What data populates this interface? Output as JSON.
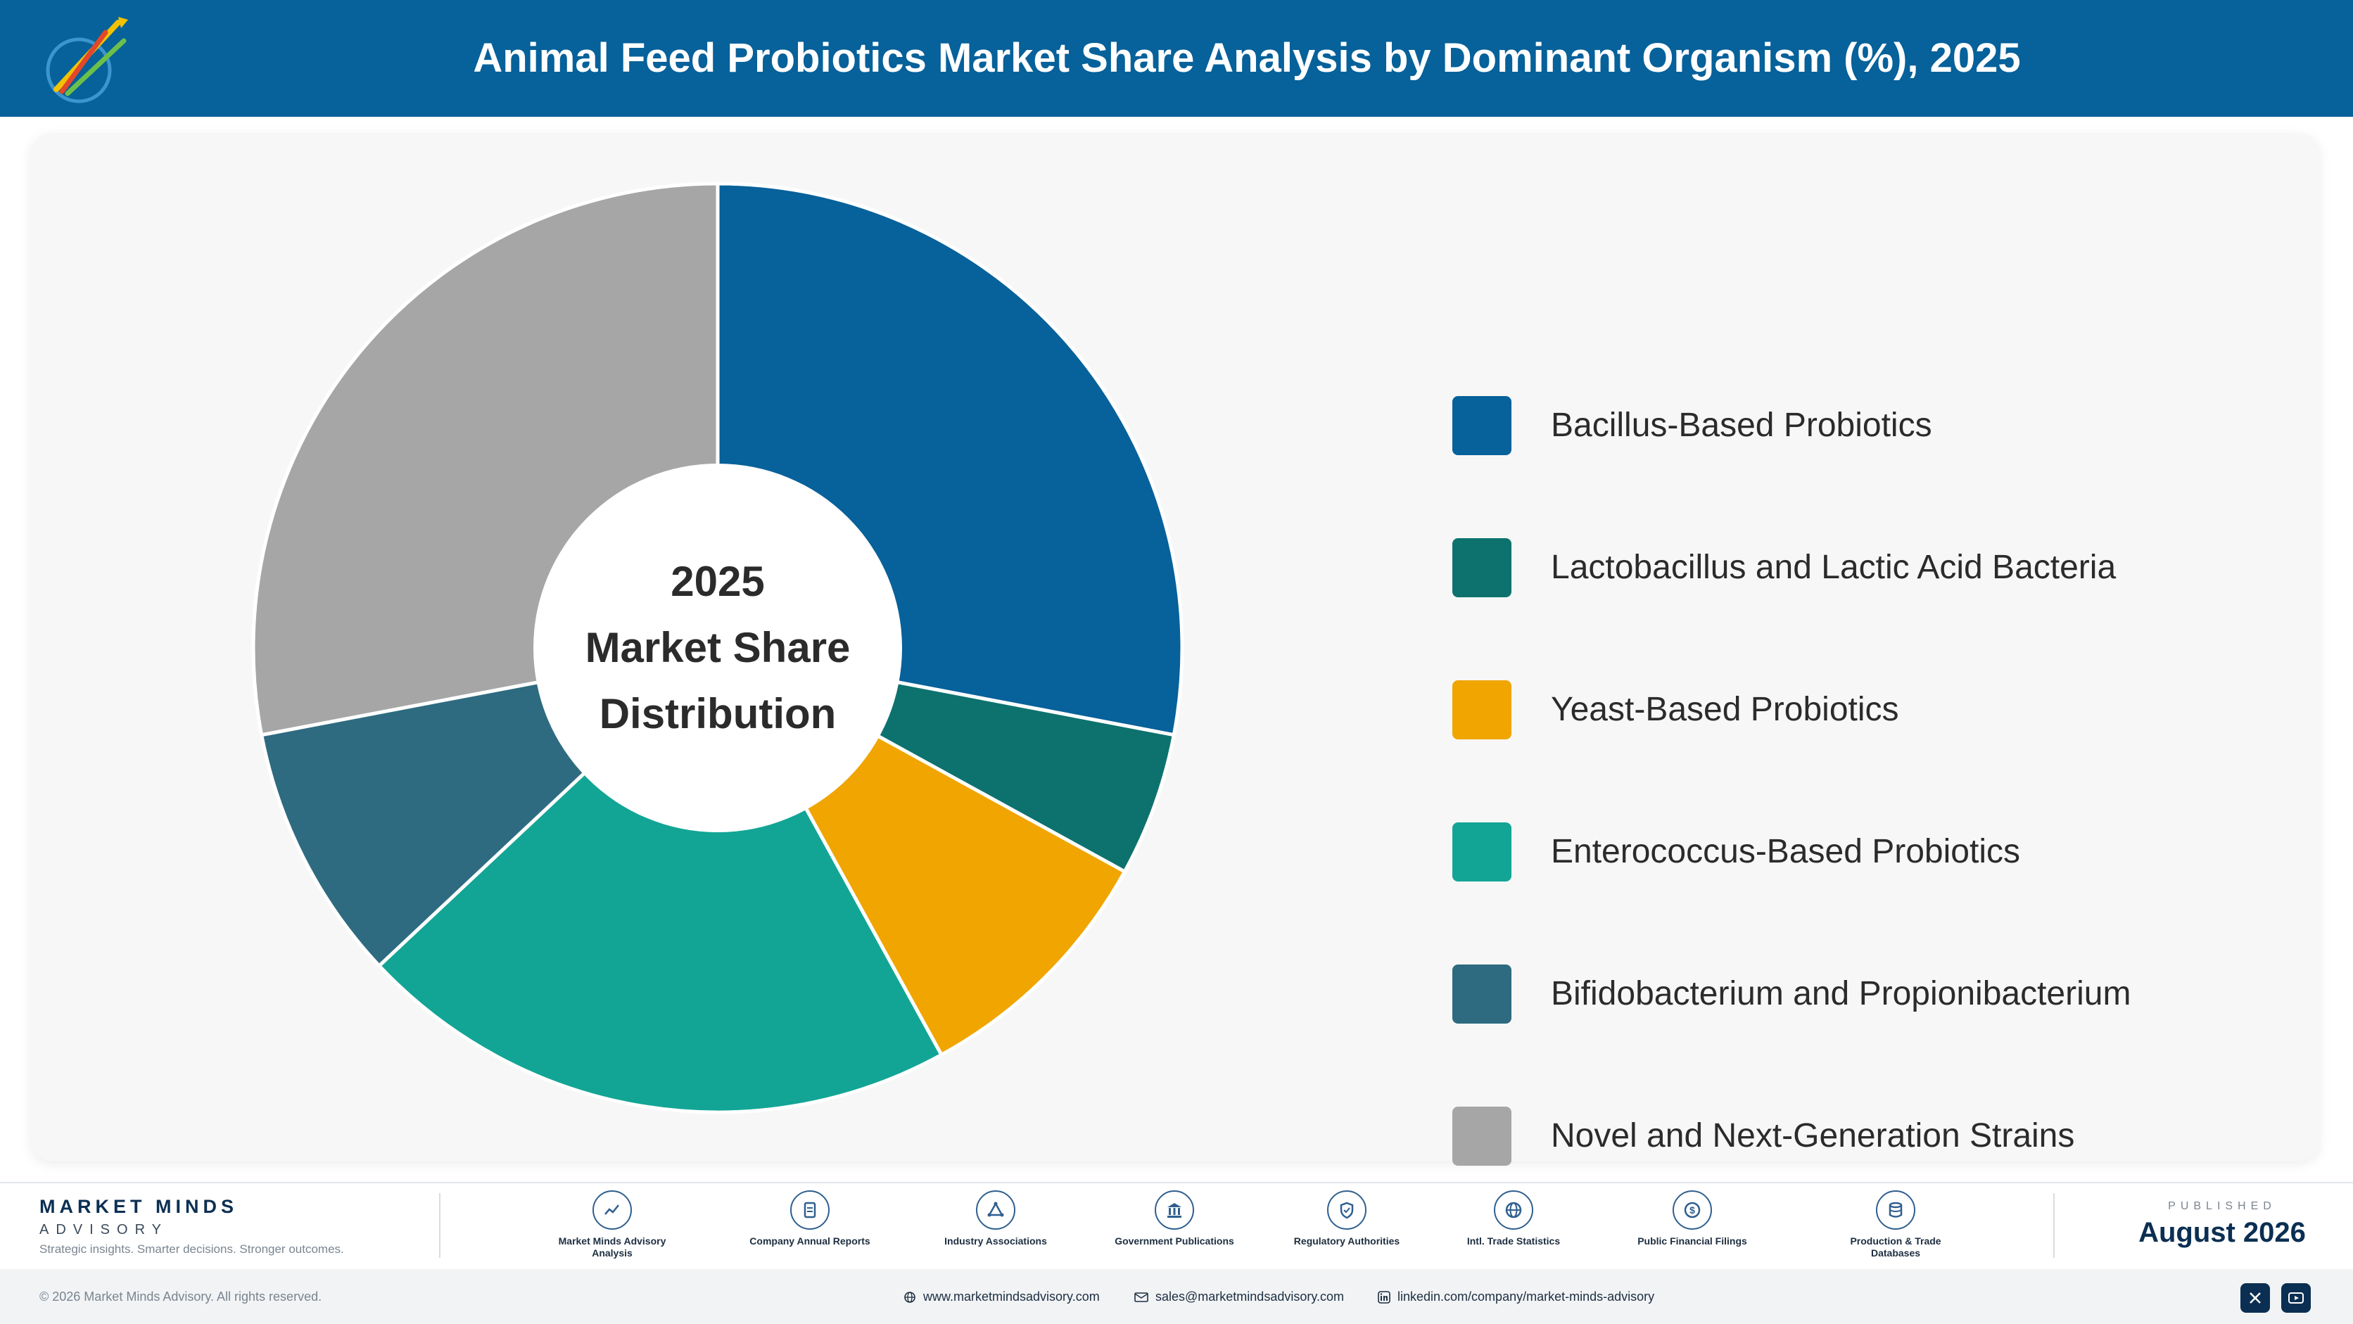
{
  "header": {
    "title": "Animal Feed Probiotics Market Share Analysis by Dominant Organism (%), 2025"
  },
  "chart_data": {
    "type": "pie",
    "title": "Animal Feed Probiotics Market Share Analysis by Dominant Organism (%), 2025",
    "center_label": [
      "2025",
      "Market Share",
      "Distribution"
    ],
    "legend_position": "right",
    "categories": [
      "Bacillus-Based Probiotics",
      "Lactobacillus and Lactic Acid Bacteria",
      "Yeast-Based Probiotics",
      "Enterococcus-Based Probiotics",
      "Bifidobacterium and Propionibacterium",
      "Novel and Next-Generation Strains"
    ],
    "values": [
      28,
      5,
      9,
      21,
      9,
      28
    ],
    "colors": [
      "#07619a",
      "#0d726e",
      "#f0a500",
      "#12a595",
      "#2e6b80",
      "#a6a6a6"
    ]
  },
  "footer": {
    "brand_name": "MARKET MINDS",
    "brand_sub": "ADVISORY",
    "tagline": "Strategic insights. Smarter decisions. Stronger outcomes.",
    "sources": [
      {
        "label": "Market Minds Advisory Analysis",
        "icon": "chart-line-icon"
      },
      {
        "label": "Company Annual Reports",
        "icon": "document-icon"
      },
      {
        "label": "Industry Associations",
        "icon": "network-icon"
      },
      {
        "label": "Government Publications",
        "icon": "government-building-icon"
      },
      {
        "label": "Regulatory Authorities",
        "icon": "shield-icon"
      },
      {
        "label": "Intl. Trade Statistics",
        "icon": "globe-icon"
      },
      {
        "label": "Public Financial Filings",
        "icon": "dollar-coin-icon"
      },
      {
        "label": "Production & Trade Databases",
        "icon": "database-icon"
      }
    ],
    "published_label": "PUBLISHED",
    "published_date": "August 2026"
  },
  "bottom_bar": {
    "copyright": "© 2026 Market Minds Advisory. All rights reserved.",
    "website": "www.marketmindsadvisory.com",
    "email": "sales@marketmindsadvisory.com",
    "linkedin": "linkedin.com/company/market-minds-advisory"
  }
}
